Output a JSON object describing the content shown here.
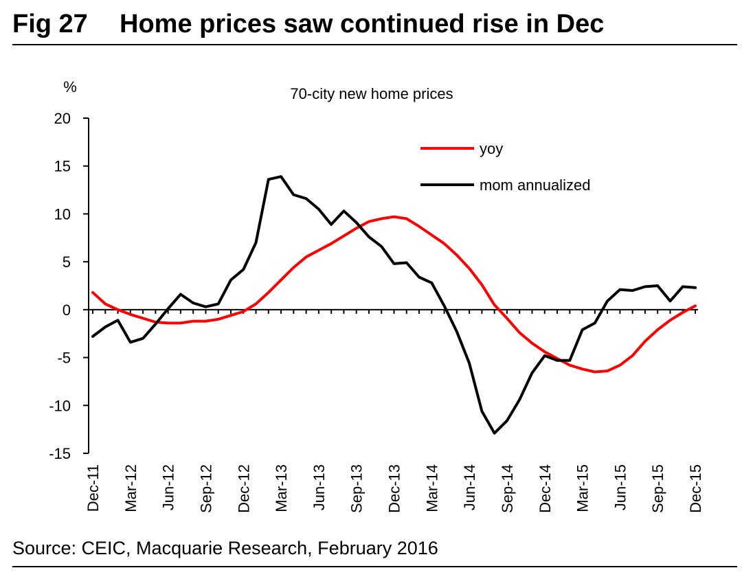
{
  "figure": {
    "number": "Fig 27",
    "title": "Home prices saw continued rise in Dec",
    "source": "Source: CEIC, Macquarie Research, February 2016"
  },
  "chart_data": {
    "type": "line",
    "title": "70-city new home prices",
    "ylabel": "%",
    "xlabel": "",
    "ylim": [
      -15,
      20
    ],
    "yticks": [
      20,
      15,
      10,
      5,
      0,
      -5,
      -10,
      -15
    ],
    "xtick_labels": [
      "Dec-11",
      "Mar-12",
      "Jun-12",
      "Sep-12",
      "Dec-12",
      "Mar-13",
      "Jun-13",
      "Sep-13",
      "Dec-13",
      "Mar-14",
      "Jun-14",
      "Sep-14",
      "Dec-14",
      "Mar-15",
      "Jun-15",
      "Sep-15",
      "Dec-15"
    ],
    "legend_position": "top-right",
    "x": [
      "Dec-11",
      "Jan-12",
      "Feb-12",
      "Mar-12",
      "Apr-12",
      "May-12",
      "Jun-12",
      "Jul-12",
      "Aug-12",
      "Sep-12",
      "Oct-12",
      "Nov-12",
      "Dec-12",
      "Jan-13",
      "Feb-13",
      "Mar-13",
      "Apr-13",
      "May-13",
      "Jun-13",
      "Jul-13",
      "Aug-13",
      "Sep-13",
      "Oct-13",
      "Nov-13",
      "Dec-13",
      "Jan-14",
      "Feb-14",
      "Mar-14",
      "Apr-14",
      "May-14",
      "Jun-14",
      "Jul-14",
      "Aug-14",
      "Sep-14",
      "Oct-14",
      "Nov-14",
      "Dec-14",
      "Jan-15",
      "Feb-15",
      "Mar-15",
      "Apr-15",
      "May-15",
      "Jun-15",
      "Jul-15",
      "Aug-15",
      "Sep-15",
      "Oct-15",
      "Nov-15",
      "Dec-15"
    ],
    "series": [
      {
        "name": "yoy",
        "color": "#ff0000",
        "values": [
          1.8,
          0.6,
          0.0,
          -0.5,
          -0.9,
          -1.3,
          -1.4,
          -1.4,
          -1.2,
          -1.2,
          -1.0,
          -0.6,
          -0.2,
          0.6,
          1.8,
          3.1,
          4.4,
          5.5,
          6.2,
          6.9,
          7.7,
          8.5,
          9.2,
          9.5,
          9.7,
          9.5,
          8.7,
          7.8,
          6.9,
          5.7,
          4.3,
          2.6,
          0.5,
          -0.9,
          -2.4,
          -3.5,
          -4.4,
          -5.1,
          -5.8,
          -6.2,
          -6.5,
          -6.4,
          -5.8,
          -4.8,
          -3.3,
          -2.1,
          -1.1,
          -0.3,
          0.4
        ]
      },
      {
        "name": "mom annualized",
        "color": "#000000",
        "values": [
          -2.8,
          -1.8,
          -1.1,
          -3.4,
          -3.0,
          -1.5,
          0.1,
          1.6,
          0.7,
          0.3,
          0.6,
          3.1,
          4.2,
          7.0,
          13.6,
          13.9,
          12.0,
          11.6,
          10.5,
          8.9,
          10.3,
          9.1,
          7.6,
          6.6,
          4.8,
          4.9,
          3.4,
          2.8,
          0.4,
          -2.3,
          -5.6,
          -10.6,
          -12.9,
          -11.6,
          -9.4,
          -6.6,
          -4.8,
          -5.3,
          -5.3,
          -2.1,
          -1.4,
          0.9,
          2.1,
          2.0,
          2.4,
          2.5,
          0.9,
          2.4,
          2.3
        ]
      }
    ]
  }
}
